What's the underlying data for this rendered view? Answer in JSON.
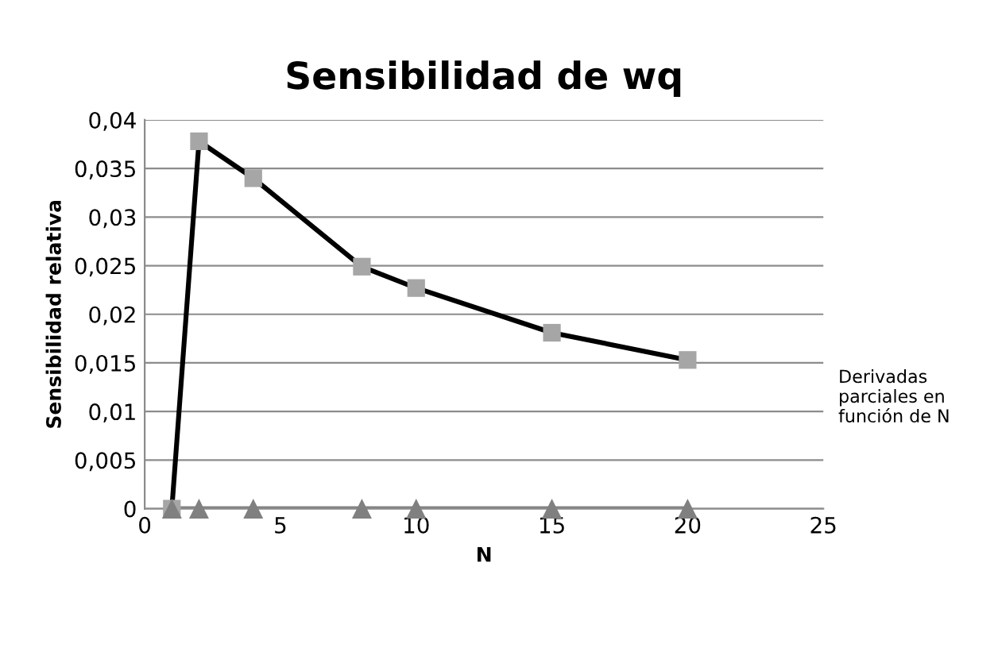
{
  "chart_data": {
    "type": "line",
    "title": "Sensibilidad de wq",
    "xlabel": "N",
    "ylabel": "Sensibilidad relativa",
    "x": [
      1,
      2,
      4,
      8,
      10,
      15,
      20
    ],
    "series": [
      {
        "color": "#000000",
        "colors": [
          "#a6a6a6",
          "#a6a6a6",
          "#a6a6a6",
          "#a6a6a6",
          "#a6a6a6",
          "#a6a6a6",
          "#a6a6a6"
        ],
        "marker": "square",
        "values": [
          0,
          0.0378,
          0.034,
          0.0249,
          0.0227,
          0.0181,
          0.0153
        ]
      },
      {
        "color": "#808080",
        "marker": "triangle",
        "values": [
          0,
          0,
          0,
          0,
          0,
          0,
          0
        ]
      }
    ],
    "xlim": [
      0,
      25
    ],
    "xticks": [
      0,
      5,
      10,
      15,
      20,
      25
    ],
    "ylim": [
      0,
      0.04
    ],
    "yticks": [
      {
        "value": 0,
        "label": "0"
      },
      {
        "value": 0.005,
        "label": "0,005"
      },
      {
        "value": 0.01,
        "label": "0,01"
      },
      {
        "value": 0.015,
        "label": "0,015"
      },
      {
        "value": 0.02,
        "label": "0,02"
      },
      {
        "value": 0.025,
        "label": "0,025"
      },
      {
        "value": 0.03,
        "label": "0,03"
      },
      {
        "value": 0.035,
        "label": "0,035"
      },
      {
        "value": 0.04,
        "label": "0,04"
      }
    ],
    "grid": "y",
    "annotations": [
      "Derivadas parciales en función de N"
    ]
  }
}
